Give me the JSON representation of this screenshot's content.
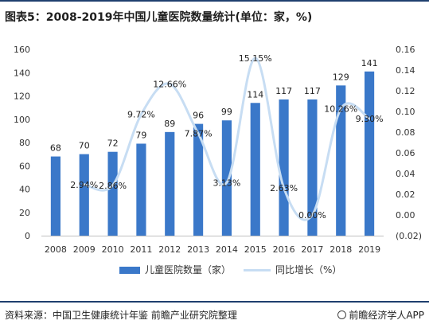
{
  "title": "图表5：2008-2019年中国儿童医院数量统计(单位：家，%)",
  "source": "资料来源：中国卫生健康统计年鉴 前瞻产业研究院整理",
  "brand": "前瞻经济学人APP",
  "legend": {
    "bar_label": "儿童医院数量（家）",
    "line_label": "同比增长（%）"
  },
  "colors": {
    "bar": "#3a78c9",
    "line": "#c7ddf3"
  },
  "chart_data": {
    "type": "bar",
    "categories": [
      "2008",
      "2009",
      "2010",
      "2011",
      "2012",
      "2013",
      "2014",
      "2015",
      "2016",
      "2017",
      "2018",
      "2019"
    ],
    "series": [
      {
        "name": "儿童医院数量（家）",
        "type": "bar",
        "axis": "left",
        "values": [
          68,
          70,
          72,
          79,
          89,
          96,
          99,
          114,
          117,
          117,
          129,
          141
        ],
        "labels": [
          "68",
          "70",
          "72",
          "79",
          "89",
          "96",
          "99",
          "114",
          "117",
          "117",
          "129",
          "141"
        ]
      },
      {
        "name": "同比增长（%）",
        "type": "line",
        "axis": "right",
        "values": [
          null,
          0.0294,
          0.0286,
          0.0972,
          0.1266,
          0.0787,
          0.0313,
          0.1515,
          0.0263,
          0.0,
          0.1026,
          0.093
        ],
        "labels": [
          "",
          "2.94%",
          "2.86%",
          "9.72%",
          "12.66%",
          "7.87%",
          "3.13%",
          "15.15%",
          "2.63%",
          "0.00%",
          "10.26%",
          "9.30%"
        ]
      }
    ],
    "y_left": {
      "ylim": [
        0,
        160
      ],
      "ticks": [
        "0",
        "20",
        "40",
        "60",
        "80",
        "100",
        "120",
        "140",
        "160"
      ]
    },
    "y_right": {
      "ylim": [
        -0.02,
        0.16
      ],
      "ticks": [
        "(0.02)",
        "0.00",
        "0.02",
        "0.04",
        "0.06",
        "0.08",
        "0.10",
        "0.12",
        "0.14",
        "0.16"
      ]
    },
    "grid": false,
    "legend_position": "bottom"
  }
}
